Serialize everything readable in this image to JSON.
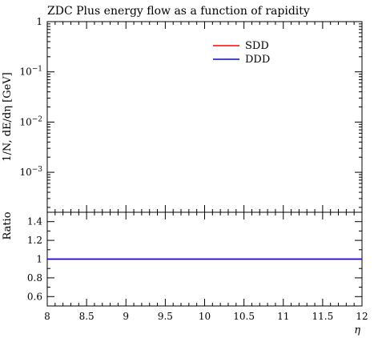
{
  "title": "ZDC Plus energy flow as a function of rapidity",
  "chart_data": {
    "main": {
      "type": "line",
      "ylabel": "1/N, dE/dη [GeV]",
      "yscale": "log",
      "ylim": [
        0.00016,
        1
      ],
      "yticks": [
        {
          "value": 1,
          "base": "1",
          "exp": ""
        },
        {
          "value": 0.1,
          "base": "10",
          "exp": "−1"
        },
        {
          "value": 0.01,
          "base": "10",
          "exp": "−2"
        },
        {
          "value": 0.001,
          "base": "10",
          "exp": "−3"
        }
      ],
      "legend_position": "top-right",
      "series": [
        {
          "name": "SDD",
          "color": "#ff0000",
          "x": [],
          "y": []
        },
        {
          "name": "DDD",
          "color": "#0000ff",
          "x": [],
          "y": []
        }
      ]
    },
    "ratio": {
      "type": "line",
      "ylabel": "Ratio",
      "xlabel": "η",
      "xlim": [
        8,
        12
      ],
      "ylim": [
        0.5,
        1.5
      ],
      "xticks": [
        "8",
        "8.5",
        "9",
        "9.5",
        "10",
        "10.5",
        "11",
        "11.5",
        "12"
      ],
      "yticks": [
        "0.6",
        "0.8",
        "1",
        "1.2",
        "1.4"
      ],
      "series": [
        {
          "name": "SDD",
          "color": "#ff0000",
          "x": [
            8,
            12
          ],
          "y": [
            1,
            1
          ]
        },
        {
          "name": "DDD",
          "color": "#0000ff",
          "x": [
            8,
            12
          ],
          "y": [
            1,
            1
          ]
        }
      ]
    }
  }
}
